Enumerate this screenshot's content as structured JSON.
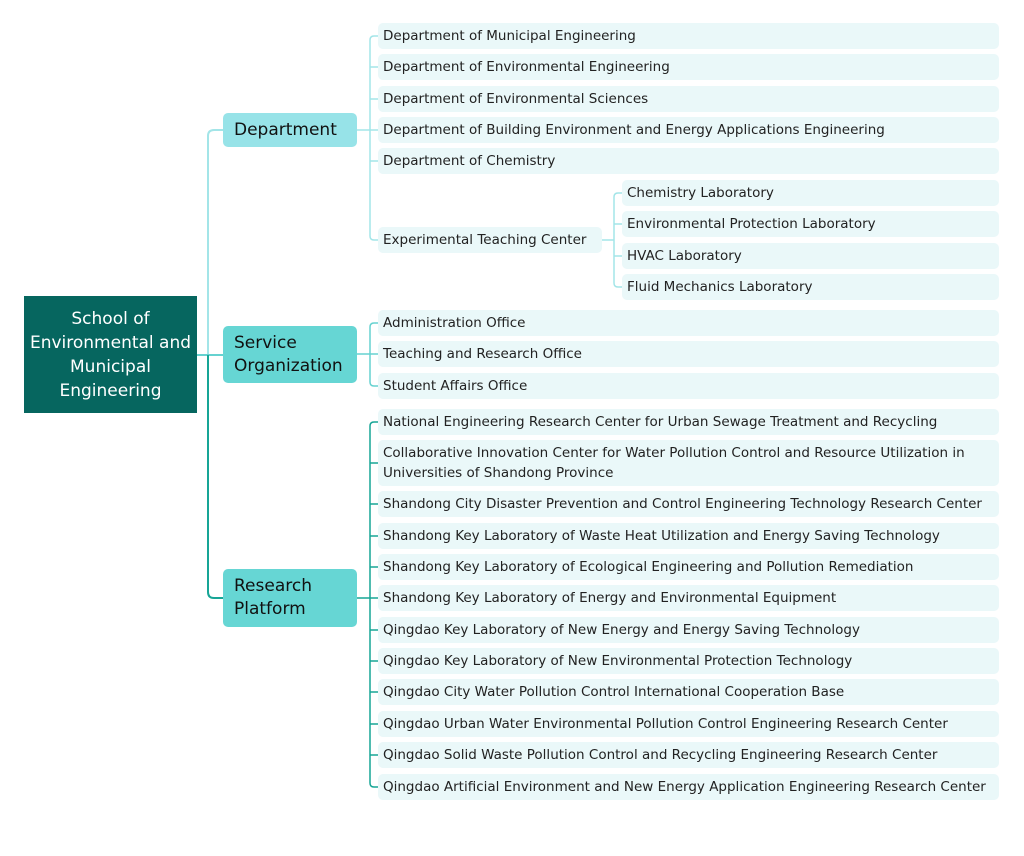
{
  "root": "School of Environmental and Municipal Engineering",
  "colors": {
    "root": "#06665f",
    "department": "#97e3e8",
    "service": "#66d6d4",
    "research": "#66d6d4",
    "leaf": "#eaf8f9",
    "line_department": "#a3e5e8",
    "line_service": "#66d2d0",
    "line_research": "#17a596"
  },
  "department": {
    "label": "Department",
    "children": [
      "Department of Municipal Engineering",
      "Department of Environmental Engineering",
      "Department of Environmental Sciences",
      "Department of Building Environment and Energy Applications Engineering",
      "Department of Chemistry"
    ],
    "center": {
      "label": "Experimental Teaching Center",
      "children": [
        "Chemistry Laboratory",
        "Environmental Protection Laboratory",
        "HVAC Laboratory",
        "Fluid Mechanics Laboratory"
      ]
    }
  },
  "service": {
    "label": "Service Organization",
    "children": [
      "Administration Office",
      "Teaching and Research Office",
      "Student Affairs Office"
    ]
  },
  "research": {
    "label": "Research Platform",
    "children": [
      "National Engineering Research Center for Urban Sewage Treatment and Recycling",
      "Collaborative Innovation Center for Water Pollution Control and Resource Utilization in Universities of Shandong Province",
      "Shandong City Disaster Prevention and Control Engineering Technology Research Center",
      "Shandong Key Laboratory of Waste Heat Utilization and Energy Saving Technology",
      "Shandong Key Laboratory of Ecological Engineering and Pollution Remediation",
      "Shandong Key Laboratory of Energy and Environmental Equipment",
      "Qingdao Key Laboratory of New Energy and Energy Saving Technology",
      "Qingdao Key Laboratory of New Environmental Protection Technology",
      "Qingdao City Water Pollution Control International Cooperation Base",
      "Qingdao Urban Water Environmental Pollution Control Engineering Research Center",
      "Qingdao Solid Waste Pollution Control and Recycling Engineering Research Center",
      "Qingdao Artificial Environment and New Energy Application Engineering Research Center"
    ]
  }
}
